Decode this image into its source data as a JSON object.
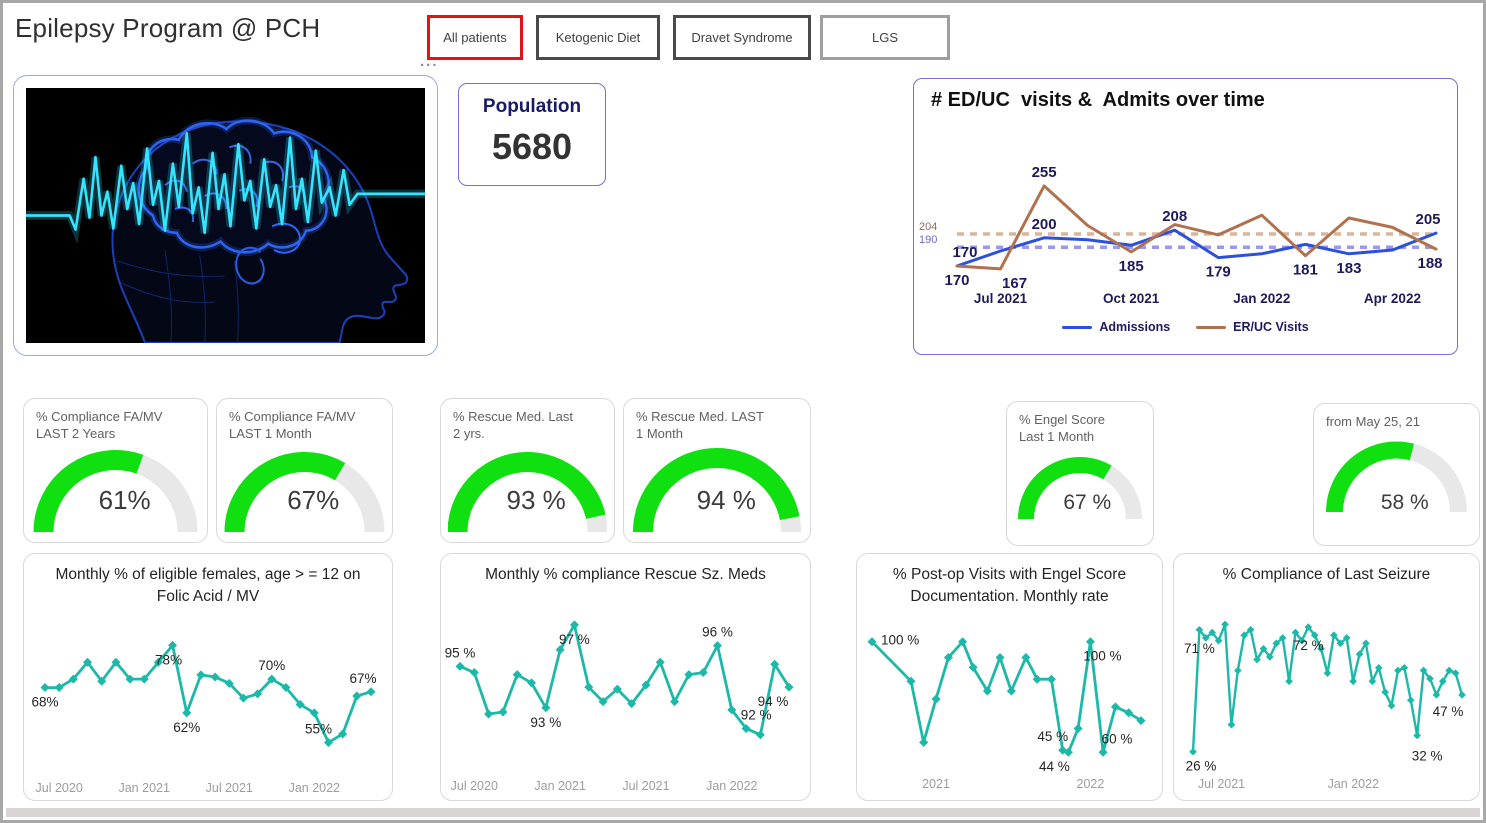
{
  "header": {
    "title": "Epilepsy Program @ PCH",
    "more_options": "...",
    "filters": [
      {
        "label": "All patients",
        "selected": true
      },
      {
        "label": "Ketogenic Diet",
        "selected": false
      },
      {
        "label": "Dravet Syndrome",
        "selected": false
      },
      {
        "label": "LGS",
        "selected": false
      }
    ]
  },
  "hero_image": {
    "name": "brain-eeg-image"
  },
  "population": {
    "label": "Population",
    "value": "5680"
  },
  "colors": {
    "accent_teal": "#1cb8a8",
    "admissions_blue": "#2b50dd",
    "eruc_brown": "#b0714f",
    "ref_tan": "#dcb49c",
    "ref_purple": "#9b97ec",
    "navy_label": "#1e1a5e",
    "gauge_green": "#10e010",
    "gauge_track": "#e8e8e8",
    "selected_filter_border": "#e01414"
  },
  "gauges": [
    {
      "title_line1": "% Compliance FA/MV",
      "title_line2": "LAST 2 Years",
      "value": 61,
      "value_label": "61%"
    },
    {
      "title_line1": "% Compliance FA/MV",
      "title_line2": "LAST 1 Month",
      "value": 67,
      "value_label": "67%"
    },
    {
      "title_line1": "% Rescue Med. Last",
      "title_line2": "2 yrs.",
      "value": 93,
      "value_label": "93 %"
    },
    {
      "title_line1": "% Rescue Med. LAST",
      "title_line2": "1 Month",
      "value": 94,
      "value_label": "94 %"
    },
    {
      "title_line1": "% Engel Score",
      "title_line2": "Last 1 Month",
      "value": 67,
      "value_label": "67 %"
    },
    {
      "title_line1": "from May 25, 21",
      "title_line2": "",
      "value": 58,
      "value_label": "58 %"
    }
  ],
  "chart_data": [
    {
      "type": "line",
      "title": "# ED/UC  visits &  Admits over time",
      "categories": [
        "Jun 2021",
        "Jul 2021",
        "Aug 2021",
        "Sep 2021",
        "Oct 2021",
        "Nov 2021",
        "Dec 2021",
        "Jan 2022",
        "Feb 2022",
        "Mar 2022",
        "Apr 2022",
        "May 2022"
      ],
      "xticks": [
        {
          "i": 1,
          "label": "Jul 2021"
        },
        {
          "i": 4,
          "label": "Oct 2021"
        },
        {
          "i": 7,
          "label": "Jan 2022"
        },
        {
          "i": 10,
          "label": "Apr 2022"
        }
      ],
      "ylim": [
        152,
        308
      ],
      "legend_position": "bottom",
      "grid": false,
      "tick_color": "#1e1a5e",
      "tick_size": 13.5,
      "tick_weight": 700,
      "reference_lines": [
        {
          "value": 204,
          "label": "204",
          "color": "#dcb49c",
          "label_color": "#8f6b58"
        },
        {
          "value": 190,
          "label": "190",
          "color": "#9b97ec",
          "label_color": "#6b67d8"
        }
      ],
      "series": [
        {
          "name": "Admissions",
          "color": "#2b50dd",
          "width": 3,
          "markers": false,
          "label_color": "#1e1a5e",
          "label_size": 15,
          "label_weight": 700,
          "values": [
            170,
            186,
            200,
            198,
            192,
            208,
            179,
            183,
            193,
            183,
            187,
            205
          ],
          "labels": [
            {
              "i": 0,
              "text": "170",
              "pos": "above",
              "dx": 8
            },
            {
              "i": 2,
              "text": "200",
              "pos": "above"
            },
            {
              "i": 5,
              "text": "208",
              "pos": "above"
            },
            {
              "i": 6,
              "text": "179",
              "pos": "below"
            },
            {
              "i": 9,
              "text": "183",
              "pos": "below"
            },
            {
              "i": 11,
              "text": "205",
              "pos": "above",
              "dx": -8
            }
          ]
        },
        {
          "name": "ER/UC Visits",
          "color": "#b0714f",
          "width": 3,
          "markers": false,
          "label_color": "#1e1a5e",
          "label_size": 15,
          "label_weight": 700,
          "values": [
            170,
            167,
            255,
            213,
            185,
            214,
            203,
            224,
            181,
            221,
            211,
            188
          ],
          "labels": [
            {
              "i": 0,
              "text": "170",
              "pos": "below"
            },
            {
              "i": 1,
              "text": "167",
              "pos": "below",
              "dx": 14
            },
            {
              "i": 2,
              "text": "255",
              "pos": "above"
            },
            {
              "i": 4,
              "text": "185",
              "pos": "below"
            },
            {
              "i": 8,
              "text": "181",
              "pos": "below"
            },
            {
              "i": 11,
              "text": "188",
              "pos": "below",
              "dx": -6
            }
          ]
        }
      ]
    },
    {
      "type": "line",
      "title": "Monthly % of eligible females, age > = 12 on Folic Acid / MV",
      "xticks": [
        {
          "i": 1,
          "label": "Jul 2020"
        },
        {
          "i": 7,
          "label": "Jan 2021"
        },
        {
          "i": 13,
          "label": "Jul 2021"
        },
        {
          "i": 19,
          "label": "Jan 2022"
        }
      ],
      "ylim": [
        48,
        84
      ],
      "grid": false,
      "tick_color": "#9d9d9d",
      "tick_size": 12.5,
      "tick_weight": 400,
      "series": [
        {
          "name": "% on Folic Acid / MV",
          "color": "#1cb8a8",
          "width": 2.8,
          "markers": true,
          "label_color": "#252423",
          "label_size": 13.5,
          "label_weight": 400,
          "values": [
            68,
            68,
            70,
            74,
            69.5,
            74,
            70,
            70,
            74,
            78,
            62,
            71,
            70.5,
            69,
            65.5,
            66.5,
            70,
            68,
            64,
            62,
            55,
            57,
            66,
            67
          ],
          "labels": [
            {
              "i": 0,
              "text": "68%",
              "pos": "below"
            },
            {
              "i": 9,
              "text": "78%",
              "pos": "below",
              "dx": -4
            },
            {
              "i": 10,
              "text": "62%",
              "pos": "below"
            },
            {
              "i": 16,
              "text": "70%",
              "pos": "above"
            },
            {
              "i": 20,
              "text": "55%",
              "pos": "above",
              "dx": -10
            },
            {
              "i": 23,
              "text": "67%",
              "pos": "above",
              "dx": -8
            }
          ]
        }
      ]
    },
    {
      "type": "line",
      "title": "Monthly % compliance Rescue Sz. Meds",
      "xticks": [
        {
          "i": 1,
          "label": "Jul 2020"
        },
        {
          "i": 7,
          "label": "Jan 2021"
        },
        {
          "i": 13,
          "label": "Jul 2021"
        },
        {
          "i": 19,
          "label": "Jan 2022"
        }
      ],
      "ylim": [
        90,
        98.2
      ],
      "grid": false,
      "tick_color": "#9d9d9d",
      "tick_size": 12.5,
      "tick_weight": 400,
      "series": [
        {
          "name": "% compliance Rescue Sz. Meds",
          "color": "#1cb8a8",
          "width": 2.8,
          "markers": true,
          "label_color": "#252423",
          "label_size": 13.5,
          "label_weight": 400,
          "values": [
            95,
            94.7,
            92.7,
            92.8,
            94.6,
            94.2,
            93,
            95.8,
            97,
            94,
            93.3,
            93.9,
            93.2,
            94.1,
            95.2,
            93.3,
            94.6,
            94.7,
            96,
            92.9,
            92,
            91.7,
            95.1,
            94
          ],
          "labels": [
            {
              "i": 0,
              "text": "95 %",
              "pos": "above"
            },
            {
              "i": 6,
              "text": "93 %",
              "pos": "below"
            },
            {
              "i": 8,
              "text": "97 %",
              "pos": "below"
            },
            {
              "i": 18,
              "text": "96 %",
              "pos": "above"
            },
            {
              "i": 20,
              "text": "92 %",
              "pos": "above",
              "dx": 10
            },
            {
              "i": 23,
              "text": "94 %",
              "pos": "below",
              "dx": -16
            }
          ]
        }
      ]
    },
    {
      "type": "line",
      "title": "% Post-op Visits with Engel Score Documentation. Monthly rate",
      "xticks": [
        {
          "f": 0.238,
          "label": "2021"
        },
        {
          "f": 0.812,
          "label": "2022"
        }
      ],
      "ylim": [
        36,
        110
      ],
      "grid": false,
      "tick_color": "#9d9d9d",
      "tick_size": 12.5,
      "tick_weight": 400,
      "series": [
        {
          "name": "% Post-op Visits with Engel Score Documentation",
          "color": "#1cb8a8",
          "width": 2.8,
          "markers": true,
          "label_color": "#252423",
          "label_size": 13.5,
          "label_weight": 400,
          "x_frac": [
            0,
            0.145,
            0.192,
            0.238,
            0.284,
            0.337,
            0.376,
            0.429,
            0.476,
            0.518,
            0.572,
            0.614,
            0.667,
            0.709,
            0.73,
            0.766,
            0.812,
            0.859,
            0.905,
            0.954,
            1
          ],
          "values": [
            100,
            80,
            49,
            71,
            92,
            100,
            87,
            75,
            92,
            75,
            92,
            81,
            81,
            45,
            44,
            56,
            100,
            44,
            67,
            64,
            60
          ],
          "labels": [
            {
              "i": 0,
              "text": "100 %",
              "pos": "right",
              "dy": -2
            },
            {
              "i": 13,
              "text": "45 %",
              "pos": "above",
              "dx": -10
            },
            {
              "i": 14,
              "text": "44 %",
              "pos": "below",
              "dx": -14
            },
            {
              "i": 16,
              "text": "100 %",
              "pos": "below",
              "dx": 12
            },
            {
              "i": 20,
              "text": "60 %",
              "pos": "below",
              "dx": -24,
              "dy": 4
            }
          ]
        }
      ]
    },
    {
      "type": "line",
      "title": "% Compliance of Last Seizure",
      "xticks": [
        {
          "f": 0.106,
          "label": "Jul 2021"
        },
        {
          "f": 0.596,
          "label": "Jan 2022"
        }
      ],
      "ylim": [
        20,
        82
      ],
      "grid": false,
      "tick_color": "#9d9d9d",
      "tick_size": 12.5,
      "tick_weight": 400,
      "series": [
        {
          "name": "% Compliance of Last Seizure",
          "color": "#1cb8a8",
          "width": 2.4,
          "markers": true,
          "marker_size": 3.8,
          "label_color": "#252423",
          "label_size": 13.5,
          "label_weight": 400,
          "values": [
            26,
            71,
            68,
            70,
            67,
            73,
            36,
            56,
            69,
            71,
            60,
            64,
            61,
            66,
            68,
            52,
            70,
            67,
            72,
            69,
            64,
            55,
            69,
            66,
            68,
            52,
            62,
            66,
            52,
            57,
            48,
            43,
            56,
            57,
            45,
            32,
            56,
            53,
            47,
            52,
            56,
            55,
            47
          ],
          "labels": [
            {
              "i": 0,
              "text": "26 %",
              "pos": "below",
              "dx": 8
            },
            {
              "i": 1,
              "text": "71 %",
              "pos": "below",
              "dy": 4
            },
            {
              "i": 18,
              "text": "72 %",
              "pos": "below",
              "dy": 4
            },
            {
              "i": 35,
              "text": "32 %",
              "pos": "below",
              "dx": 10,
              "dy": 6
            },
            {
              "i": 42,
              "text": "47 %",
              "pos": "below",
              "dx": -14,
              "dy": 2
            }
          ]
        }
      ]
    }
  ]
}
